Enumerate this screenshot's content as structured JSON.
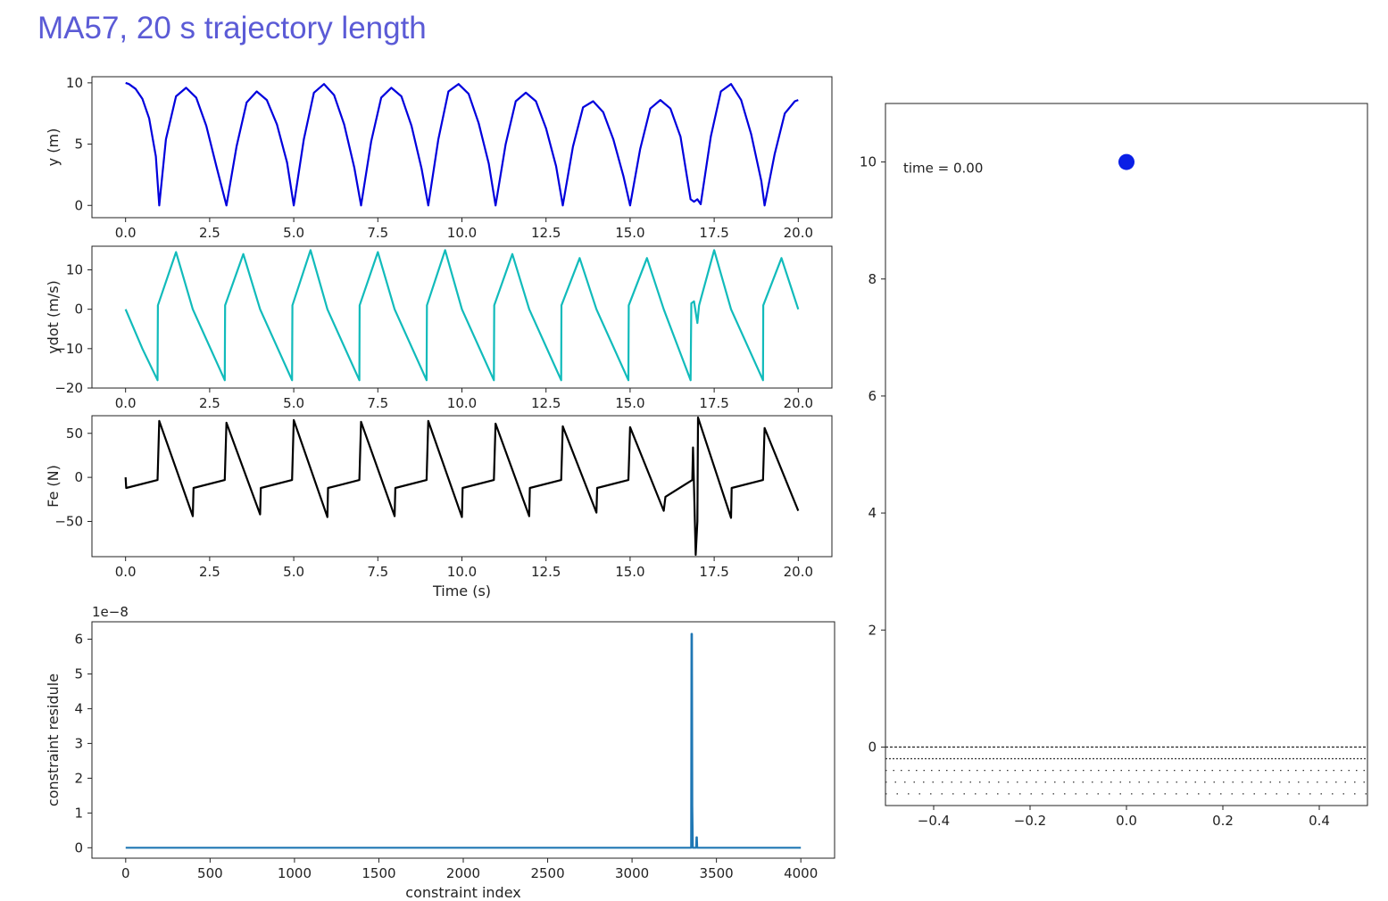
{
  "title": "MA57, 20 s trajectory length",
  "chart_data": [
    {
      "id": "y",
      "type": "line",
      "xlabel": "",
      "ylabel": "y (m)",
      "xlim": [
        -1,
        21
      ],
      "ylim": [
        -1,
        10.5
      ],
      "xticks": [
        "0.0",
        "2.5",
        "5.0",
        "7.5",
        "10.0",
        "12.5",
        "15.0",
        "17.5",
        "20.0"
      ],
      "yticks": [
        "0",
        "5",
        "10"
      ],
      "color": "#0000dd",
      "series": [
        {
          "x": [
            0,
            0.1,
            0.3,
            0.5,
            0.7,
            0.9,
            1,
            1.2,
            1.5,
            1.8,
            2.1,
            2.4,
            2.7,
            3,
            3.3,
            3.6,
            3.9,
            4.2,
            4.5,
            4.8,
            5,
            5.3,
            5.6,
            5.9,
            6.2,
            6.5,
            6.8,
            7,
            7.3,
            7.6,
            7.9,
            8.2,
            8.5,
            8.8,
            9,
            9.3,
            9.6,
            9.9,
            10.2,
            10.5,
            10.8,
            11,
            11.3,
            11.6,
            11.9,
            12.2,
            12.5,
            12.8,
            13,
            13.3,
            13.6,
            13.9,
            14.2,
            14.5,
            14.8,
            15,
            15.3,
            15.6,
            15.9,
            16.2,
            16.5,
            16.8,
            16.9,
            17,
            17.1,
            17.4,
            17.7,
            18,
            18.3,
            18.6,
            18.9,
            19,
            19.3,
            19.6,
            19.9,
            20
          ],
          "y": [
            10,
            9.9,
            9.5,
            8.7,
            7.1,
            4.0,
            0,
            5.4,
            8.9,
            9.6,
            8.8,
            6.5,
            3.2,
            0,
            4.8,
            8.4,
            9.3,
            8.6,
            6.6,
            3.5,
            0,
            5.4,
            9.2,
            9.9,
            9.0,
            6.6,
            3.1,
            0,
            5.2,
            8.8,
            9.6,
            8.9,
            6.5,
            3.0,
            0,
            5.4,
            9.3,
            9.9,
            9.1,
            6.7,
            3.4,
            0,
            5.0,
            8.5,
            9.2,
            8.5,
            6.3,
            3.2,
            0,
            4.8,
            8.0,
            8.5,
            7.6,
            5.4,
            2.4,
            0,
            4.6,
            7.9,
            8.6,
            7.9,
            5.6,
            0.5,
            0.3,
            0.5,
            0.1,
            5.6,
            9.3,
            9.9,
            8.6,
            5.8,
            2.0,
            0,
            4.2,
            7.5,
            8.5,
            8.6
          ]
        }
      ]
    },
    {
      "id": "ydot",
      "type": "line",
      "xlabel": "",
      "ylabel": "ydot (m/s)",
      "xlim": [
        -1,
        21
      ],
      "ylim": [
        -20,
        16
      ],
      "xticks": [
        "0.0",
        "2.5",
        "5.0",
        "7.5",
        "10.0",
        "12.5",
        "15.0",
        "17.5",
        "20.0"
      ],
      "yticks": [
        "−20",
        "−10",
        "0",
        "10"
      ],
      "color": "#11bbbb",
      "series": [
        {
          "x": [
            0,
            0.5,
            0.95,
            0.96,
            1.5,
            2,
            2.95,
            2.96,
            3.5,
            4,
            4.95,
            4.96,
            5.5,
            6,
            6.95,
            6.96,
            7.5,
            8,
            8.95,
            8.96,
            9.5,
            10,
            10.95,
            10.96,
            11.5,
            12,
            12.95,
            12.96,
            13.5,
            14,
            14.95,
            14.96,
            15.5,
            16,
            16.8,
            16.82,
            16.9,
            17,
            17.05,
            17.5,
            18,
            18.95,
            18.96,
            19.5,
            20
          ],
          "y": [
            0,
            -10,
            -18,
            1,
            14.5,
            0,
            -18,
            1,
            14,
            0,
            -18,
            1,
            15,
            0,
            -18,
            1,
            14.5,
            0,
            -18,
            1,
            15,
            0,
            -18,
            1,
            14,
            0,
            -18,
            1,
            13,
            0,
            -18,
            1,
            13,
            0,
            -18,
            1.5,
            2,
            -3.5,
            1,
            15,
            0,
            -18,
            1,
            13,
            0
          ]
        }
      ]
    },
    {
      "id": "fe",
      "type": "line",
      "xlabel": "Time (s)",
      "ylabel": "Fe (N)",
      "xlim": [
        -1,
        21
      ],
      "ylim": [
        -90,
        70
      ],
      "xticks": [
        "0.0",
        "2.5",
        "5.0",
        "7.5",
        "10.0",
        "12.5",
        "15.0",
        "17.5",
        "20.0"
      ],
      "yticks": [
        "−50",
        "0",
        "50"
      ],
      "color": "#000000",
      "series": [
        {
          "x": [
            0,
            0.02,
            0.95,
            1,
            2,
            2.02,
            2.95,
            3,
            4,
            4.02,
            4.95,
            5,
            6,
            6.02,
            6.95,
            7,
            8,
            8.02,
            8.95,
            9,
            10,
            10.02,
            10.95,
            11,
            12,
            12.02,
            12.95,
            13,
            14,
            14.02,
            14.95,
            15,
            16,
            16.05,
            16.85,
            16.87,
            16.9,
            16.95,
            17.0,
            17.02,
            18,
            18.02,
            18.95,
            19,
            20
          ],
          "y": [
            0,
            -12,
            -3,
            64,
            -44,
            -12,
            -3,
            62,
            -42,
            -12,
            -3,
            65,
            -45,
            -12,
            -3,
            63,
            -44,
            -12,
            -3,
            64,
            -45,
            -12,
            -3,
            61,
            -44,
            -12,
            -3,
            58,
            -40,
            -12,
            -3,
            57,
            -38,
            -22,
            -3,
            34,
            -10,
            -88,
            -50,
            68,
            -46,
            -12,
            -3,
            56,
            -38
          ]
        }
      ]
    },
    {
      "id": "residue",
      "type": "line",
      "xlabel": "constraint index",
      "ylabel": "constraint residule",
      "offset_label": "1e−8",
      "xlim": [
        -200,
        4200
      ],
      "ylim": [
        -0.3,
        6.5
      ],
      "xticks": [
        "0",
        "500",
        "1000",
        "1500",
        "2000",
        "2500",
        "3000",
        "3500",
        "4000"
      ],
      "yticks": [
        "0",
        "1",
        "2",
        "3",
        "4",
        "5",
        "6"
      ],
      "color": "#1f77b4",
      "series": [
        {
          "x": [
            0,
            3350,
            3352,
            3355,
            3357,
            3360,
            3362,
            3365,
            3380,
            3382,
            3384,
            3386,
            3388,
            4000
          ],
          "y": [
            0,
            0,
            6.15,
            6.15,
            1.2,
            0,
            0,
            0,
            0,
            0.3,
            0.3,
            0,
            0,
            0
          ]
        }
      ]
    },
    {
      "id": "animation",
      "type": "scatter",
      "xlabel": "",
      "ylabel": "",
      "xlim": [
        -0.5,
        0.5
      ],
      "ylim": [
        -1,
        11
      ],
      "xticks": [
        "−0.4",
        "−0.2",
        "0.0",
        "0.2",
        "0.4"
      ],
      "yticks": [
        "0",
        "2",
        "4",
        "6",
        "8",
        "10"
      ],
      "annotation": "time = 0.00",
      "ball": {
        "x": 0.0,
        "y": 10.0,
        "color": "#0a1fe6"
      },
      "ground_lines_y": [
        0,
        -0.2,
        -0.4,
        -0.6,
        -0.8
      ]
    }
  ]
}
